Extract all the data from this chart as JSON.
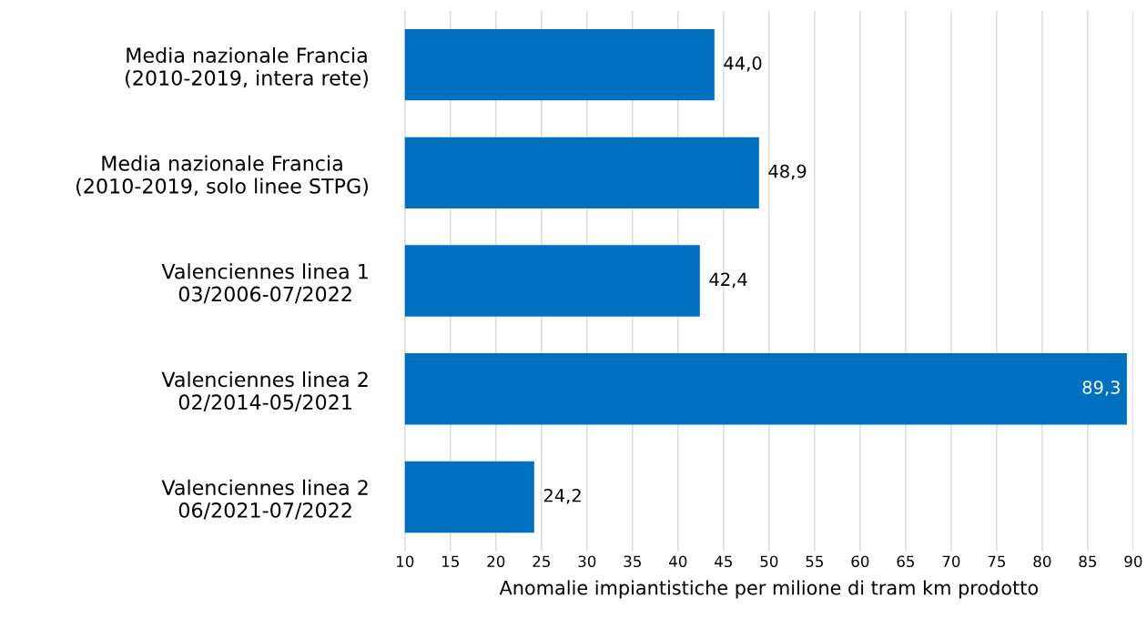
{
  "chart_data": {
    "type": "bar",
    "orientation": "horizontal",
    "xlabel": "Anomalie impiantistiche per milione di tram km prodotto",
    "categories": [
      "Media nazionale Francia\n(2010-2019, intera rete)",
      "Media nazionale Francia\n(2010-2019, solo linee STPG)",
      "Valenciennes linea 1\n03/2006-07/2022",
      "Valenciennes linea 2\n02/2014-05/2021",
      "Valenciennes linea 2\n06/2021-07/2022"
    ],
    "values": [
      44.0,
      48.9,
      42.4,
      89.3,
      24.2
    ],
    "value_labels": [
      "44,0",
      "48,9",
      "42,4",
      "89,3",
      "24,2"
    ],
    "color": "#0070c0",
    "xlim": [
      10,
      90
    ],
    "xticks": [
      10,
      15,
      20,
      25,
      30,
      35,
      40,
      45,
      50,
      55,
      60,
      65,
      70,
      75,
      80,
      85,
      90
    ],
    "grid": "x",
    "legend": false
  }
}
